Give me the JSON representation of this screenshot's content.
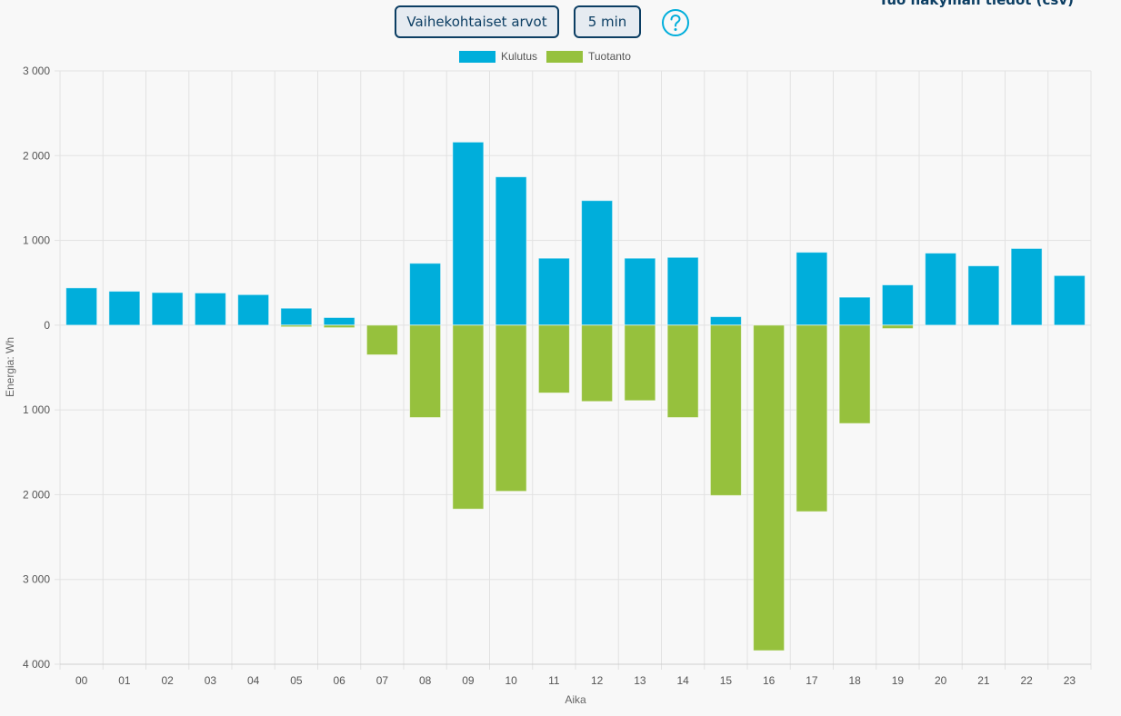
{
  "header": {
    "top_link": "Tuo näkymän tiedot (csv)",
    "phase_button": "Vaihekohtaiset arvot",
    "interval_button": "5 min",
    "help_icon": "help-circle-icon"
  },
  "colors": {
    "consumption": "#00aedb",
    "production": "#96c13d",
    "accent": "#0c3e63"
  },
  "chart_data": {
    "type": "bar",
    "categories": [
      "00",
      "01",
      "02",
      "03",
      "04",
      "05",
      "06",
      "07",
      "08",
      "09",
      "10",
      "11",
      "12",
      "13",
      "14",
      "15",
      "16",
      "17",
      "18",
      "19",
      "20",
      "21",
      "22",
      "23"
    ],
    "series": [
      {
        "name": "Kulutus",
        "values": [
          440,
          400,
          385,
          380,
          360,
          200,
          90,
          0,
          730,
          2160,
          1750,
          790,
          1470,
          790,
          800,
          100,
          0,
          860,
          330,
          475,
          850,
          700,
          905,
          585
        ]
      },
      {
        "name": "Tuotanto",
        "values": [
          0,
          0,
          0,
          0,
          0,
          -20,
          -30,
          -350,
          -1090,
          -2170,
          -1960,
          -800,
          -900,
          -890,
          -1090,
          -2010,
          -3840,
          -2200,
          -1160,
          -40,
          0,
          0,
          0,
          0
        ]
      }
    ],
    "y_ticks": [
      {
        "value": 3000,
        "label": "3 000"
      },
      {
        "value": 2000,
        "label": "2 000"
      },
      {
        "value": 1000,
        "label": "1 000"
      },
      {
        "value": 0,
        "label": "0"
      },
      {
        "value": -1000,
        "label": "1 000"
      },
      {
        "value": -2000,
        "label": "2 000"
      },
      {
        "value": -3000,
        "label": "3 000"
      },
      {
        "value": -4000,
        "label": "4 000"
      }
    ],
    "ylim": [
      -4000,
      3000
    ],
    "xlabel": "Aika",
    "ylabel": "Energia: Wh",
    "legend": "top",
    "grid": true
  }
}
